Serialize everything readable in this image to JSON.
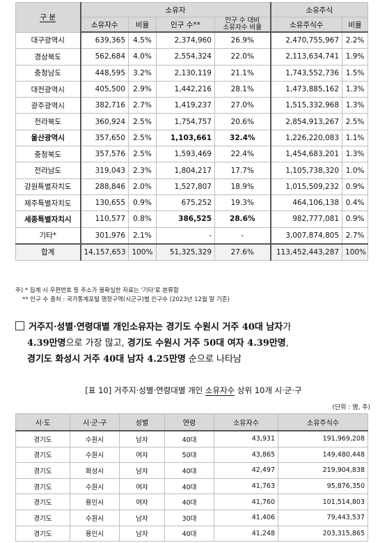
{
  "table1": {
    "header_gubun": "구   분",
    "header_owners": "소유자",
    "header_stocks": "소유주식",
    "col_owner_count": "소유자수",
    "col_ratio": "비율",
    "col_population": "인구 수**",
    "col_owner_pop_ratio_line1": "인구 수 대비",
    "col_owner_pop_ratio_line2": "소유자수 비율",
    "col_stock_count": "소유주식수",
    "col_stock_ratio": "비율",
    "rows": [
      {
        "region": "대구광역시",
        "owners": "639,365",
        "ratio": "4.5%",
        "population": "2,374,960",
        "pop_ratio": "26.9%",
        "stocks": "2,470,755,967",
        "stock_ratio": "2.2%"
      },
      {
        "region": "경상북도",
        "owners": "562,684",
        "ratio": "4.0%",
        "population": "2,554,324",
        "pop_ratio": "22.0%",
        "stocks": "2,113,634,741",
        "stock_ratio": "1.9%"
      },
      {
        "region": "충청남도",
        "owners": "448,595",
        "ratio": "3.2%",
        "population": "2,130,119",
        "pop_ratio": "21.1%",
        "stocks": "1,743,552,736",
        "stock_ratio": "1.5%"
      },
      {
        "region": "대전광역시",
        "owners": "405,500",
        "ratio": "2.9%",
        "population": "1,442,216",
        "pop_ratio": "28.1%",
        "stocks": "1,473,885,162",
        "stock_ratio": "1.3%"
      },
      {
        "region": "광주광역시",
        "owners": "382,716",
        "ratio": "2.7%",
        "population": "1,419,237",
        "pop_ratio": "27.0%",
        "stocks": "1,515,332,968",
        "stock_ratio": "1.3%"
      },
      {
        "region": "전라북도",
        "owners": "360,924",
        "ratio": "2.5%",
        "population": "1,754,757",
        "pop_ratio": "20.6%",
        "stocks": "2,854,913,267",
        "stock_ratio": "2.5%"
      },
      {
        "region": "울산광역시",
        "owners": "357,650",
        "ratio": "2.5%",
        "population": "1,103,661",
        "pop_ratio": "32.4%",
        "stocks": "1,226,220,083",
        "stock_ratio": "1.1%"
      },
      {
        "region": "충청북도",
        "owners": "357,576",
        "ratio": "2.5%",
        "population": "1,593,469",
        "pop_ratio": "22.4%",
        "stocks": "1,454,683,201",
        "stock_ratio": "1.3%"
      },
      {
        "region": "전라남도",
        "owners": "319,043",
        "ratio": "2.3%",
        "population": "1,804,217",
        "pop_ratio": "17.7%",
        "stocks": "1,105,738,320",
        "stock_ratio": "1.0%"
      },
      {
        "region": "강원특별자치도",
        "owners": "288,846",
        "ratio": "2.0%",
        "population": "1,527,807",
        "pop_ratio": "18.9%",
        "stocks": "1,015,509,232",
        "stock_ratio": "0.9%"
      },
      {
        "region": "제주특별자치도",
        "owners": "130,655",
        "ratio": "0.9%",
        "population": "675,252",
        "pop_ratio": "19.3%",
        "stocks": "464,106,138",
        "stock_ratio": "0.4%"
      },
      {
        "region": "세종특별자치시",
        "owners": "110,577",
        "ratio": "0.8%",
        "population": "386,525",
        "pop_ratio": "28.6%",
        "stocks": "982,777,081",
        "stock_ratio": "0.9%"
      },
      {
        "region": "기타*",
        "owners": "301,976",
        "ratio": "2.1%",
        "population": "-",
        "pop_ratio": "-",
        "stocks": "3,007,874,805",
        "stock_ratio": "2.7%"
      }
    ],
    "total": {
      "region": "합계",
      "owners": "14,157,653",
      "ratio": "100%",
      "population": "51,325,329",
      "pop_ratio": "27.6%",
      "stocks": "113,452,443,287",
      "stock_ratio": "100%"
    }
  },
  "notes": {
    "note1": "주) * 집계 시 우편번호 등 주소가 불확실한 자료는 '기타'로 분류함",
    "note2": "** 인구 수 출처 : 국가통계포털 행정구역(시군구)별 인구수 (2023년 12월 말 기준)"
  },
  "summary": {
    "line1_a": "거주지·성별·연령대별 개인소유자는 ",
    "line1_b": "경기도 수원시 거주 40대 남자",
    "line1_c": "가",
    "line2_a": "4.39만명",
    "line2_b": "으로 가장 많고, ",
    "line2_c": "경기도 수원시 거주 50대 여자 4.39만명",
    "line2_d": ",",
    "line3_a": "경기도 화성시 거주 40대 남자 4.25만명",
    "line3_b": " 순으로 나타남"
  },
  "table2": {
    "title_prefix": "[표 10] 거주지·성별·연령대별 개인 ",
    "title_underlined": "소유자수",
    "title_suffix": " 상위 10개 시·군·구",
    "unit": "(단위 : 명, 주)",
    "headers": [
      "시·도",
      "시·군·구",
      "성별",
      "연령",
      "소유자수",
      "소유주식수"
    ],
    "rows": [
      {
        "sido": "경기도",
        "sigungu": "수원시",
        "gender": "남자",
        "age": "40대",
        "owners": "43,931",
        "stocks": "191,969,208"
      },
      {
        "sido": "경기도",
        "sigungu": "수원시",
        "gender": "여자",
        "age": "50대",
        "owners": "43,865",
        "stocks": "149,480,448"
      },
      {
        "sido": "경기도",
        "sigungu": "화성시",
        "gender": "남자",
        "age": "40대",
        "owners": "42,497",
        "stocks": "219,904,838"
      },
      {
        "sido": "경기도",
        "sigungu": "수원시",
        "gender": "여자",
        "age": "40대",
        "owners": "41,763",
        "stocks": "95,876,350"
      },
      {
        "sido": "경기도",
        "sigungu": "용인시",
        "gender": "여자",
        "age": "40대",
        "owners": "41,760",
        "stocks": "101,514,803"
      },
      {
        "sido": "경기도",
        "sigungu": "수원시",
        "gender": "남자",
        "age": "30대",
        "owners": "41,406",
        "stocks": "79,443,537"
      },
      {
        "sido": "경기도",
        "sigungu": "용인시",
        "gender": "남자",
        "age": "40대",
        "owners": "41,248",
        "stocks": "203,315,865"
      }
    ]
  }
}
